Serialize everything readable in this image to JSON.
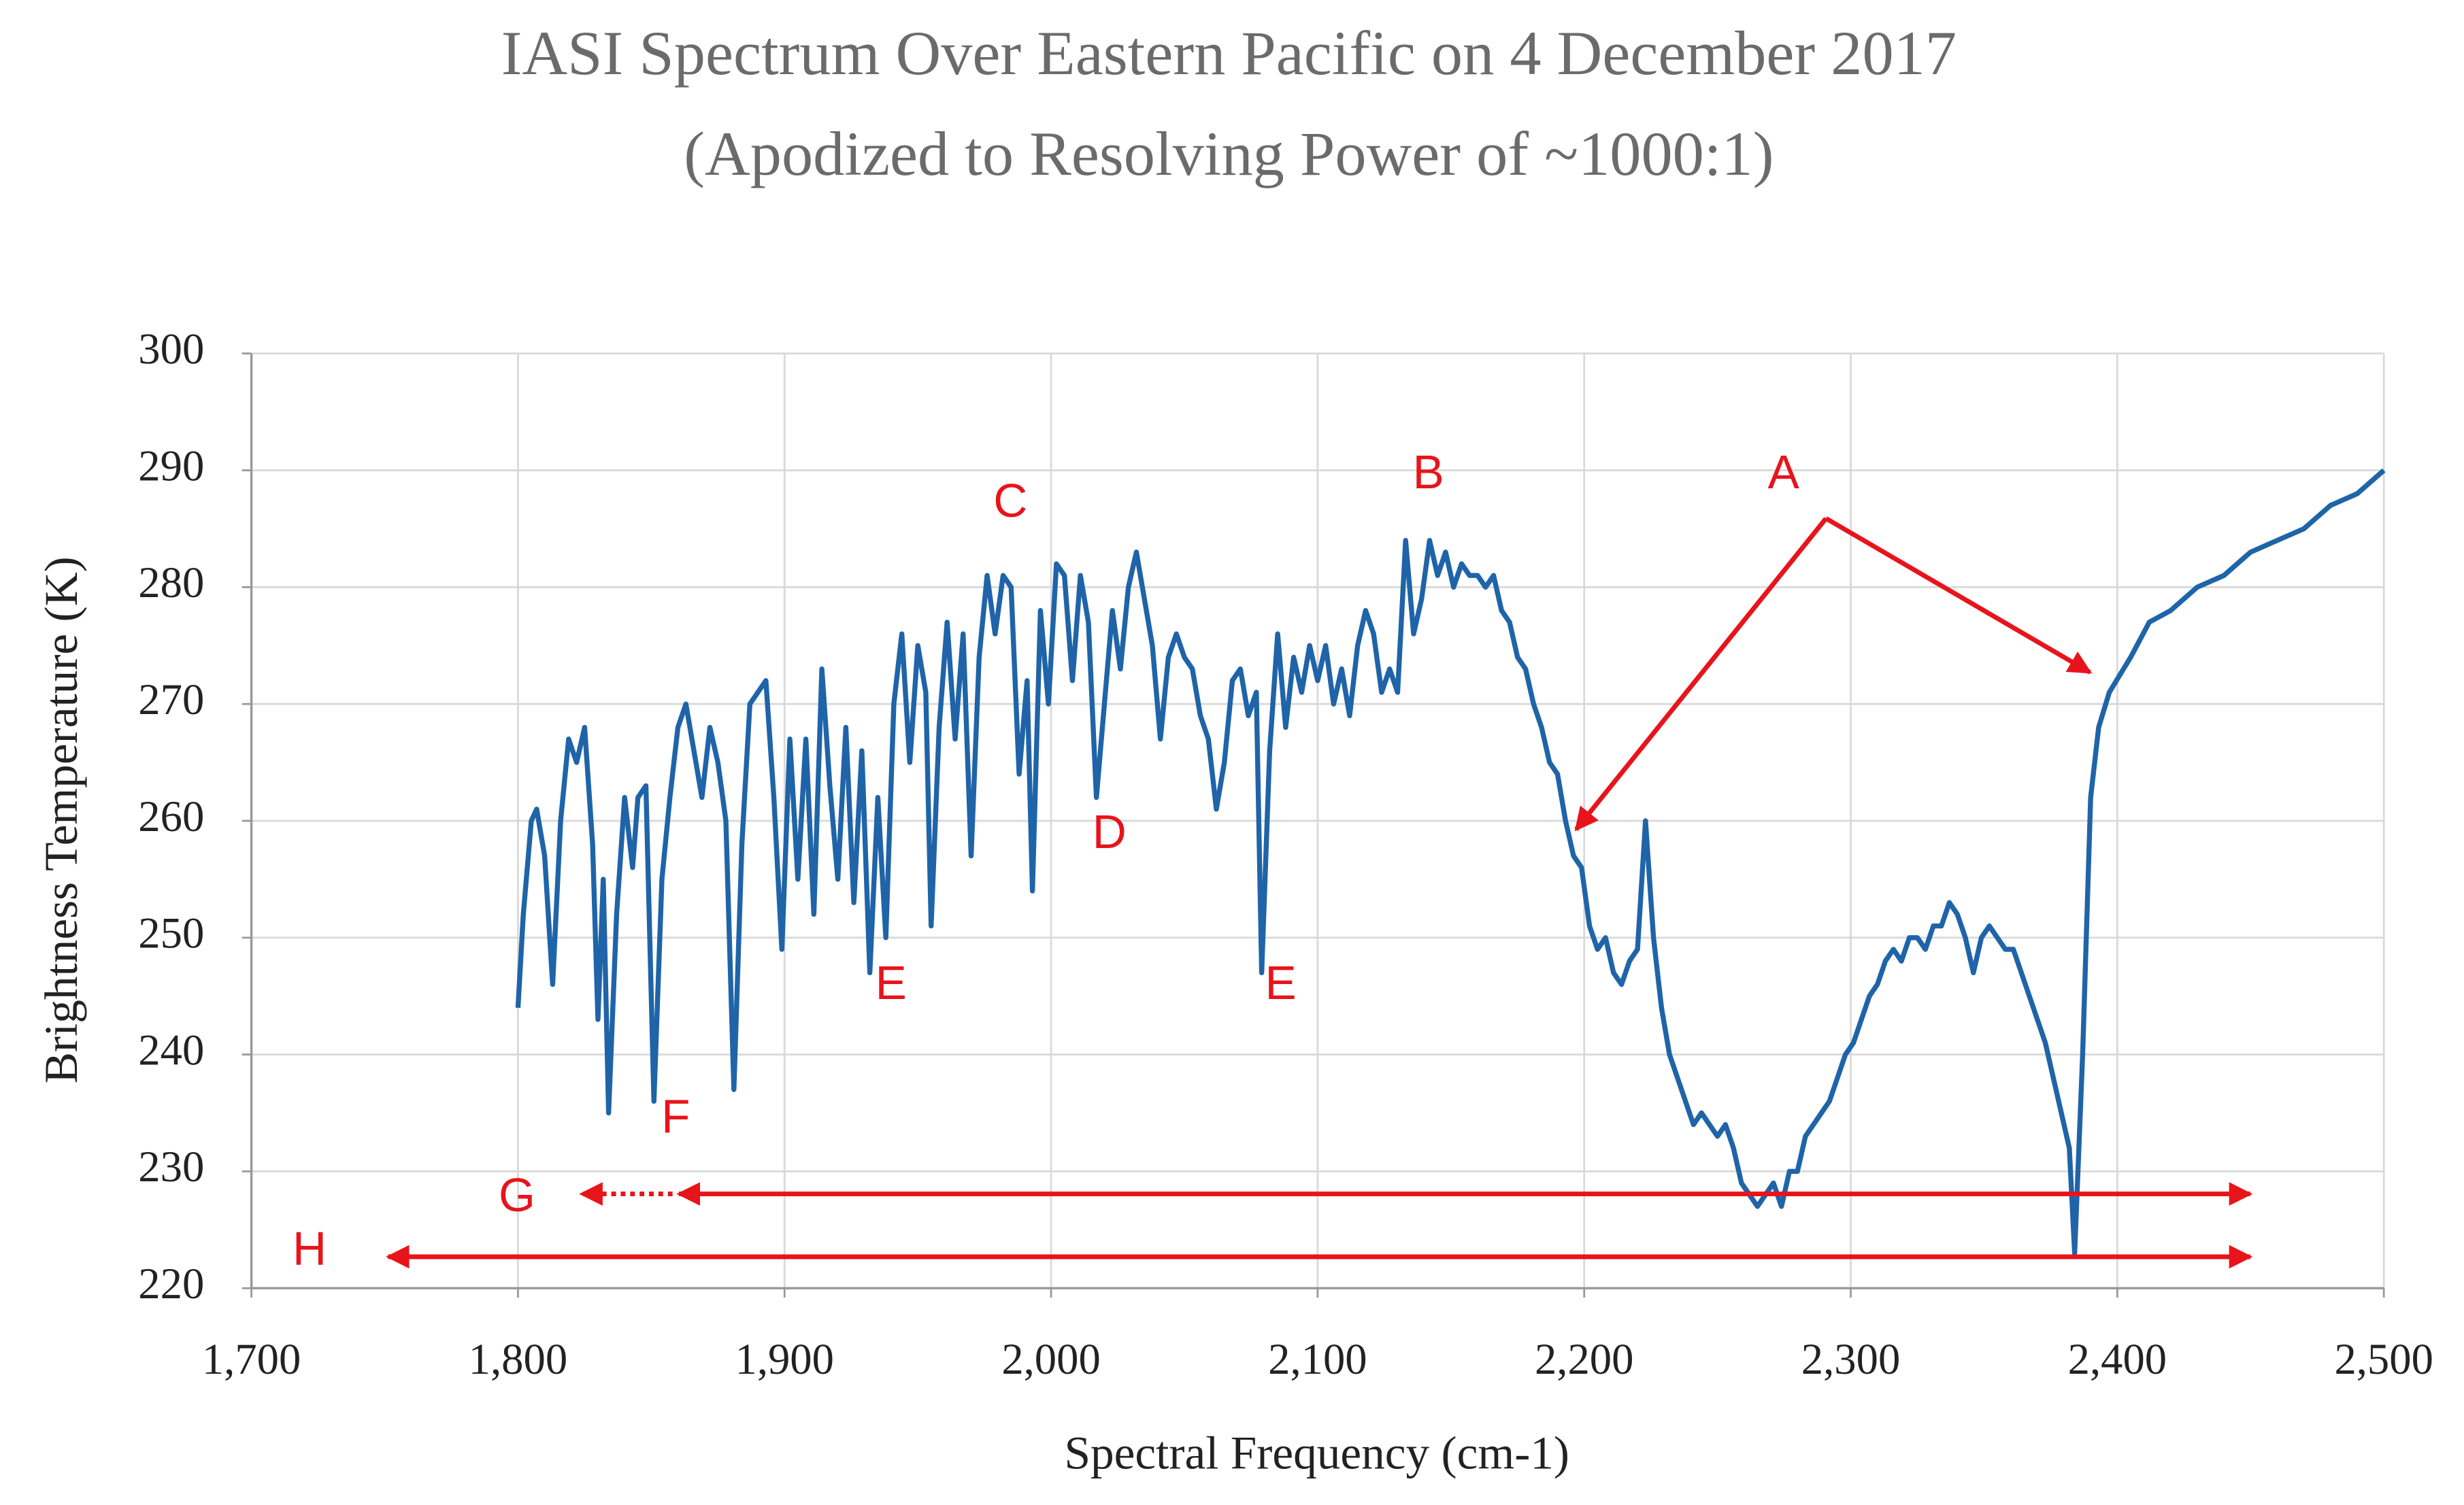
{
  "chart_data": {
    "type": "line",
    "title": "IASI Spectrum Over Eastern Pacific on 4 December 2017",
    "subtitle": "(Apodized  to Resolving Power of ~1000:1)",
    "x_label": "Spectral Frequency (cm-1)",
    "y_label": "Brightness Temperature (K)",
    "color": "#1f64a8",
    "grid": true,
    "xlim": [
      1700,
      2500
    ],
    "ylim": [
      220,
      300
    ],
    "xticks": [
      {
        "value": 1700,
        "label": "1,700"
      },
      {
        "value": 1800,
        "label": "1,800"
      },
      {
        "value": 1900,
        "label": "1,900"
      },
      {
        "value": 2000,
        "label": "2,000"
      },
      {
        "value": 2100,
        "label": "2,100"
      },
      {
        "value": 2200,
        "label": "2,200"
      },
      {
        "value": 2300,
        "label": "2,300"
      },
      {
        "value": 2400,
        "label": "2,400"
      },
      {
        "value": 2500,
        "label": "2,500"
      }
    ],
    "yticks": [
      220,
      230,
      240,
      250,
      260,
      270,
      280,
      290,
      300
    ],
    "annotations": [
      "A",
      "B",
      "C",
      "D",
      "E",
      "E",
      "F",
      "G",
      "H"
    ],
    "x": [
      1800,
      1802,
      1805,
      1807,
      1810,
      1813,
      1816,
      1819,
      1822,
      1825,
      1828,
      1830,
      1832,
      1834,
      1837,
      1840,
      1843,
      1845,
      1848,
      1851,
      1854,
      1857,
      1860,
      1863,
      1866,
      1869,
      1872,
      1875,
      1878,
      1881,
      1884,
      1887,
      1890,
      1893,
      1896,
      1899,
      1902,
      1905,
      1908,
      1911,
      1914,
      1917,
      1920,
      1923,
      1926,
      1929,
      1932,
      1935,
      1938,
      1941,
      1944,
      1947,
      1950,
      1953,
      1955,
      1958,
      1961,
      1964,
      1967,
      1970,
      1973,
      1976,
      1979,
      1982,
      1985,
      1988,
      1991,
      1993,
      1996,
      1999,
      2002,
      2005,
      2008,
      2011,
      2014,
      2017,
      2020,
      2023,
      2026,
      2029,
      2032,
      2035,
      2038,
      2041,
      2044,
      2047,
      2050,
      2053,
      2056,
      2059,
      2062,
      2065,
      2068,
      2071,
      2074,
      2077,
      2079,
      2082,
      2085,
      2088,
      2091,
      2094,
      2097,
      2100,
      2103,
      2106,
      2109,
      2112,
      2115,
      2118,
      2121,
      2124,
      2127,
      2130,
      2133,
      2136,
      2139,
      2142,
      2145,
      2148,
      2151,
      2154,
      2157,
      2160,
      2163,
      2166,
      2169,
      2172,
      2175,
      2178,
      2181,
      2184,
      2187,
      2190,
      2193,
      2196,
      2199,
      2202,
      2205,
      2208,
      2211,
      2214,
      2217,
      2220,
      2223,
      2226,
      2229,
      2232,
      2235,
      2238,
      2241,
      2244,
      2247,
      2250,
      2253,
      2256,
      2259,
      2262,
      2265,
      2268,
      2271,
      2274,
      2277,
      2280,
      2283,
      2286,
      2289,
      2292,
      2295,
      2298,
      2301,
      2304,
      2307,
      2310,
      2313,
      2316,
      2319,
      2322,
      2325,
      2328,
      2331,
      2334,
      2337,
      2340,
      2343,
      2346,
      2349,
      2352,
      2355,
      2358,
      2361,
      2364,
      2367,
      2370,
      2373,
      2376,
      2379,
      2382,
      2384,
      2387,
      2390,
      2393,
      2397,
      2405,
      2412,
      2420,
      2430,
      2440,
      2450,
      2460,
      2470,
      2480,
      2490,
      2500
    ],
    "values": [
      244,
      252,
      260,
      261,
      257,
      246,
      260,
      267,
      265,
      268,
      258,
      243,
      255,
      235,
      252,
      262,
      256,
      262,
      263,
      236,
      255,
      262,
      268,
      270,
      266,
      262,
      268,
      265,
      260,
      237,
      258,
      270,
      271,
      272,
      262,
      249,
      267,
      255,
      267,
      252,
      273,
      263,
      255,
      268,
      253,
      266,
      247,
      262,
      250,
      270,
      276,
      265,
      275,
      271,
      251,
      268,
      277,
      267,
      276,
      257,
      274,
      281,
      276,
      281,
      280,
      264,
      272,
      254,
      278,
      270,
      282,
      281,
      272,
      281,
      277,
      262,
      270,
      278,
      273,
      280,
      283,
      279,
      275,
      267,
      274,
      276,
      274,
      273,
      269,
      267,
      261,
      265,
      272,
      273,
      269,
      271,
      247,
      266,
      276,
      268,
      274,
      271,
      275,
      272,
      275,
      270,
      273,
      269,
      275,
      278,
      276,
      271,
      273,
      271,
      284,
      276,
      279,
      284,
      281,
      283,
      280,
      282,
      281,
      281,
      280,
      281,
      278,
      277,
      274,
      273,
      270,
      268,
      265,
      264,
      260,
      257,
      256,
      251,
      249,
      250,
      247,
      246,
      248,
      249,
      260,
      250,
      244,
      240,
      238,
      236,
      234,
      235,
      234,
      233,
      234,
      232,
      229,
      228,
      227,
      228,
      229,
      227,
      230,
      230,
      233,
      234,
      235,
      236,
      238,
      240,
      241,
      243,
      245,
      246,
      248,
      249,
      248,
      250,
      250,
      249,
      251,
      251,
      253,
      252,
      250,
      247,
      250,
      251,
      250,
      249,
      249,
      247,
      245,
      243,
      241,
      238,
      235,
      232,
      223,
      240,
      262,
      268,
      271,
      274,
      277,
      278,
      280,
      281,
      283,
      284,
      285,
      287,
      288,
      290
    ]
  }
}
